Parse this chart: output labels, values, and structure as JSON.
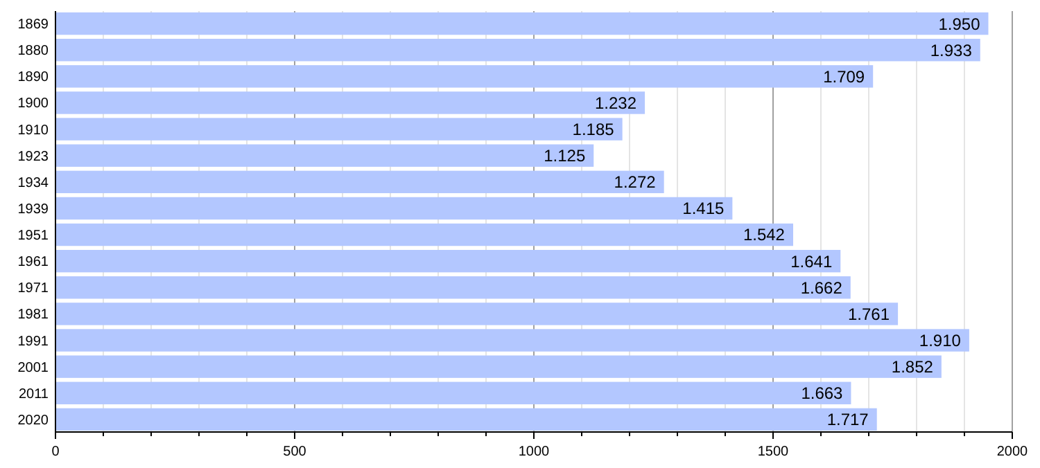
{
  "chart_data": {
    "type": "bar",
    "orientation": "horizontal",
    "categories": [
      "1869",
      "1880",
      "1890",
      "1900",
      "1910",
      "1923",
      "1934",
      "1939",
      "1951",
      "1961",
      "1971",
      "1981",
      "1991",
      "2001",
      "2011",
      "2020"
    ],
    "values": [
      1950,
      1933,
      1709,
      1232,
      1185,
      1125,
      1272,
      1415,
      1542,
      1641,
      1662,
      1761,
      1910,
      1852,
      1663,
      1717
    ],
    "value_labels": [
      "1.950",
      "1.933",
      "1.709",
      "1.232",
      "1.185",
      "1.125",
      "1.272",
      "1.415",
      "1.542",
      "1.641",
      "1.662",
      "1.761",
      "1.910",
      "1.852",
      "1.663",
      "1.717"
    ],
    "color": "#b3c7ff",
    "xlim": [
      0,
      2000
    ],
    "xticks": [
      0,
      {
        "value": 100,
        "label": null
      },
      {
        "value": 200,
        "label": null
      },
      {
        "value": 300,
        "label": null
      },
      {
        "value": 400,
        "label": null
      },
      500,
      {
        "value": 600,
        "label": null
      },
      {
        "value": 700,
        "label": null
      },
      {
        "value": 800,
        "label": null
      },
      {
        "value": 900,
        "label": null
      },
      1000,
      {
        "value": 1100,
        "label": null
      },
      {
        "value": 1200,
        "label": null
      },
      {
        "value": 1300,
        "label": null
      },
      {
        "value": 1400,
        "label": null
      },
      1500,
      {
        "value": 1600,
        "label": null
      },
      {
        "value": 1700,
        "label": null
      },
      {
        "value": 1800,
        "label": null
      },
      {
        "value": 1900,
        "label": null
      },
      2000
    ],
    "grid": "x"
  }
}
